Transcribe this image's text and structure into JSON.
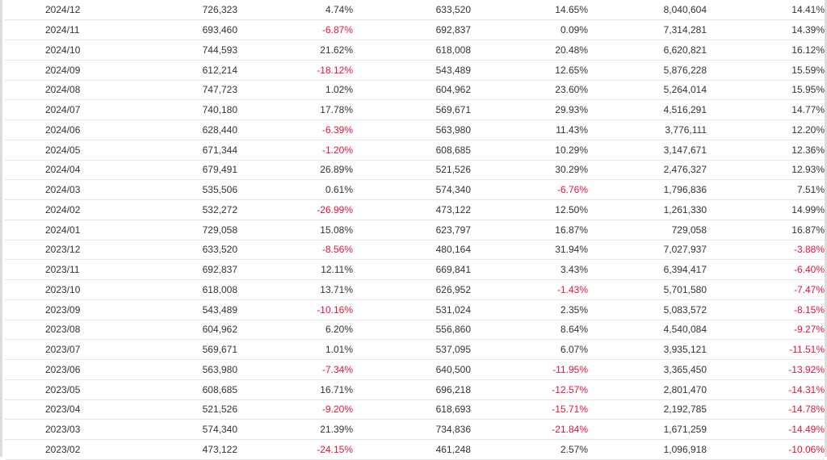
{
  "colors": {
    "text": "#333333",
    "negative": "#e8123c",
    "border": "#e6e6e6"
  },
  "table": {
    "rows": [
      [
        "2024/12",
        "726,323",
        "4.74%",
        "633,520",
        "14.65%",
        "8,040,604",
        "14.41%"
      ],
      [
        "2024/11",
        "693,460",
        "-6.87%",
        "692,837",
        "0.09%",
        "7,314,281",
        "14.39%"
      ],
      [
        "2024/10",
        "744,593",
        "21.62%",
        "618,008",
        "20.48%",
        "6,620,821",
        "16.12%"
      ],
      [
        "2024/09",
        "612,214",
        "-18.12%",
        "543,489",
        "12.65%",
        "5,876,228",
        "15.59%"
      ],
      [
        "2024/08",
        "747,723",
        "1.02%",
        "604,962",
        "23.60%",
        "5,264,014",
        "15.95%"
      ],
      [
        "2024/07",
        "740,180",
        "17.78%",
        "569,671",
        "29.93%",
        "4,516,291",
        "14.77%"
      ],
      [
        "2024/06",
        "628,440",
        "-6.39%",
        "563,980",
        "11.43%",
        "3,776,111",
        "12.20%"
      ],
      [
        "2024/05",
        "671,344",
        "-1.20%",
        "608,685",
        "10.29%",
        "3,147,671",
        "12.36%"
      ],
      [
        "2024/04",
        "679,491",
        "26.89%",
        "521,526",
        "30.29%",
        "2,476,327",
        "12.93%"
      ],
      [
        "2024/03",
        "535,506",
        "0.61%",
        "574,340",
        "-6.76%",
        "1,796,836",
        "7.51%"
      ],
      [
        "2024/02",
        "532,272",
        "-26.99%",
        "473,122",
        "12.50%",
        "1,261,330",
        "14.99%"
      ],
      [
        "2024/01",
        "729,058",
        "15.08%",
        "623,797",
        "16.87%",
        "729,058",
        "16.87%"
      ],
      [
        "2023/12",
        "633,520",
        "-8.56%",
        "480,164",
        "31.94%",
        "7,027,937",
        "-3.88%"
      ],
      [
        "2023/11",
        "692,837",
        "12.11%",
        "669,841",
        "3.43%",
        "6,394,417",
        "-6.40%"
      ],
      [
        "2023/10",
        "618,008",
        "13.71%",
        "626,952",
        "-1.43%",
        "5,701,580",
        "-7.47%"
      ],
      [
        "2023/09",
        "543,489",
        "-10.16%",
        "531,024",
        "2.35%",
        "5,083,572",
        "-8.15%"
      ],
      [
        "2023/08",
        "604,962",
        "6.20%",
        "556,860",
        "8.64%",
        "4,540,084",
        "-9.27%"
      ],
      [
        "2023/07",
        "569,671",
        "1.01%",
        "537,095",
        "6.07%",
        "3,935,121",
        "-11.51%"
      ],
      [
        "2023/06",
        "563,980",
        "-7.34%",
        "640,500",
        "-11.95%",
        "3,365,450",
        "-13.92%"
      ],
      [
        "2023/05",
        "608,685",
        "16.71%",
        "696,218",
        "-12.57%",
        "2,801,470",
        "-14.31%"
      ],
      [
        "2023/04",
        "521,526",
        "-9.20%",
        "618,693",
        "-15.71%",
        "2,192,785",
        "-14.78%"
      ],
      [
        "2023/03",
        "574,340",
        "21.39%",
        "734,836",
        "-21.84%",
        "1,671,259",
        "-14.49%"
      ],
      [
        "2023/02",
        "473,122",
        "-24.15%",
        "461,248",
        "2.57%",
        "1,096,918",
        "-10.06%"
      ]
    ]
  }
}
